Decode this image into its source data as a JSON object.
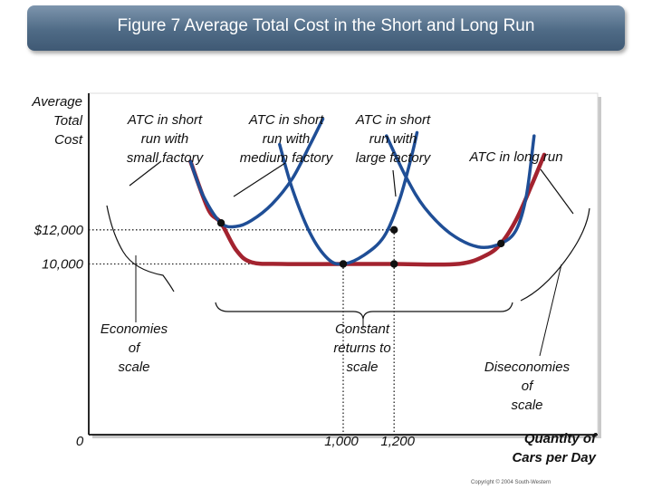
{
  "title": "Figure 7 Average Total Cost in the Short and Long Run",
  "copyright": "Copyright © 2004 South-Western",
  "colors": {
    "short_run_curve": "#1f4e96",
    "long_run_curve": "#a3232f",
    "title_bar": "#4f6b86",
    "plot_background": "#ffffff"
  },
  "chart_data": {
    "type": "line",
    "title": "Figure 7 Average Total Cost in the Short and Long Run",
    "ylabel": [
      "Average",
      "Total",
      "Cost"
    ],
    "xlabel": [
      "Quantity of",
      "Cars per Day"
    ],
    "origin_label": "0",
    "x_ticks": [
      {
        "value": 1000,
        "label": "1,000"
      },
      {
        "value": 1200,
        "label": "1,200"
      }
    ],
    "y_ticks": [
      {
        "value": 12000,
        "label": "$12,000"
      },
      {
        "value": 10000,
        "label": "10,000"
      }
    ],
    "ylim": [
      0,
      20000
    ],
    "grid": false,
    "series": [
      {
        "name": "ATC in short run with small factory",
        "label_lines": [
          "ATC in short",
          "run with",
          "small factory"
        ],
        "role": "short_run",
        "points": [
          [
            400,
            16000
          ],
          [
            450,
            14000
          ],
          [
            520,
            12400
          ],
          [
            580,
            12200
          ],
          [
            640,
            12550
          ],
          [
            720,
            13500
          ],
          [
            800,
            15000
          ],
          [
            870,
            17000
          ],
          [
            920,
            18500
          ]
        ]
      },
      {
        "name": "ATC in short run with medium factory",
        "label_lines": [
          "ATC in short",
          "run with",
          "medium factory"
        ],
        "role": "short_run",
        "points": [
          [
            750,
            17000
          ],
          [
            800,
            14400
          ],
          [
            870,
            11800
          ],
          [
            940,
            10300
          ],
          [
            1000,
            10000
          ],
          [
            1080,
            10500
          ],
          [
            1160,
            11600
          ],
          [
            1220,
            13700
          ],
          [
            1270,
            16400
          ],
          [
            1290,
            17700
          ]
        ]
      },
      {
        "name": "ATC in short run with large factory",
        "label_lines": [
          "ATC in short",
          "run with",
          "large factory"
        ],
        "role": "short_run",
        "points": [
          [
            1170,
            17500
          ],
          [
            1250,
            15000
          ],
          [
            1320,
            13300
          ],
          [
            1420,
            11800
          ],
          [
            1530,
            11000
          ],
          [
            1620,
            11200
          ],
          [
            1680,
            12000
          ],
          [
            1720,
            14000
          ],
          [
            1750,
            17500
          ]
        ]
      },
      {
        "name": "ATC in long run",
        "label_lines": [
          "ATC in long run"
        ],
        "role": "long_run",
        "points": [
          [
            400,
            16000
          ],
          [
            470,
            13200
          ],
          [
            520,
            12400
          ],
          [
            580,
            10800
          ],
          [
            640,
            10100
          ],
          [
            760,
            10000
          ],
          [
            1000,
            10000
          ],
          [
            1200,
            10000
          ],
          [
            1450,
            10000
          ],
          [
            1560,
            10500
          ],
          [
            1620,
            11200
          ],
          [
            1680,
            12600
          ],
          [
            1740,
            14600
          ],
          [
            1790,
            16400
          ]
        ]
      }
    ],
    "marked_points": [
      {
        "x": 520,
        "y": 12400
      },
      {
        "x": 1000,
        "y": 10000
      },
      {
        "x": 1200,
        "y": 12000
      },
      {
        "x": 1200,
        "y": 10000
      },
      {
        "x": 1620,
        "y": 11200
      }
    ],
    "region_labels": [
      {
        "lines": [
          "Economies",
          "of",
          "scale"
        ]
      },
      {
        "lines": [
          "Constant",
          "returns to",
          "scale"
        ]
      },
      {
        "lines": [
          "Diseconomies",
          "of",
          "scale"
        ]
      }
    ]
  }
}
